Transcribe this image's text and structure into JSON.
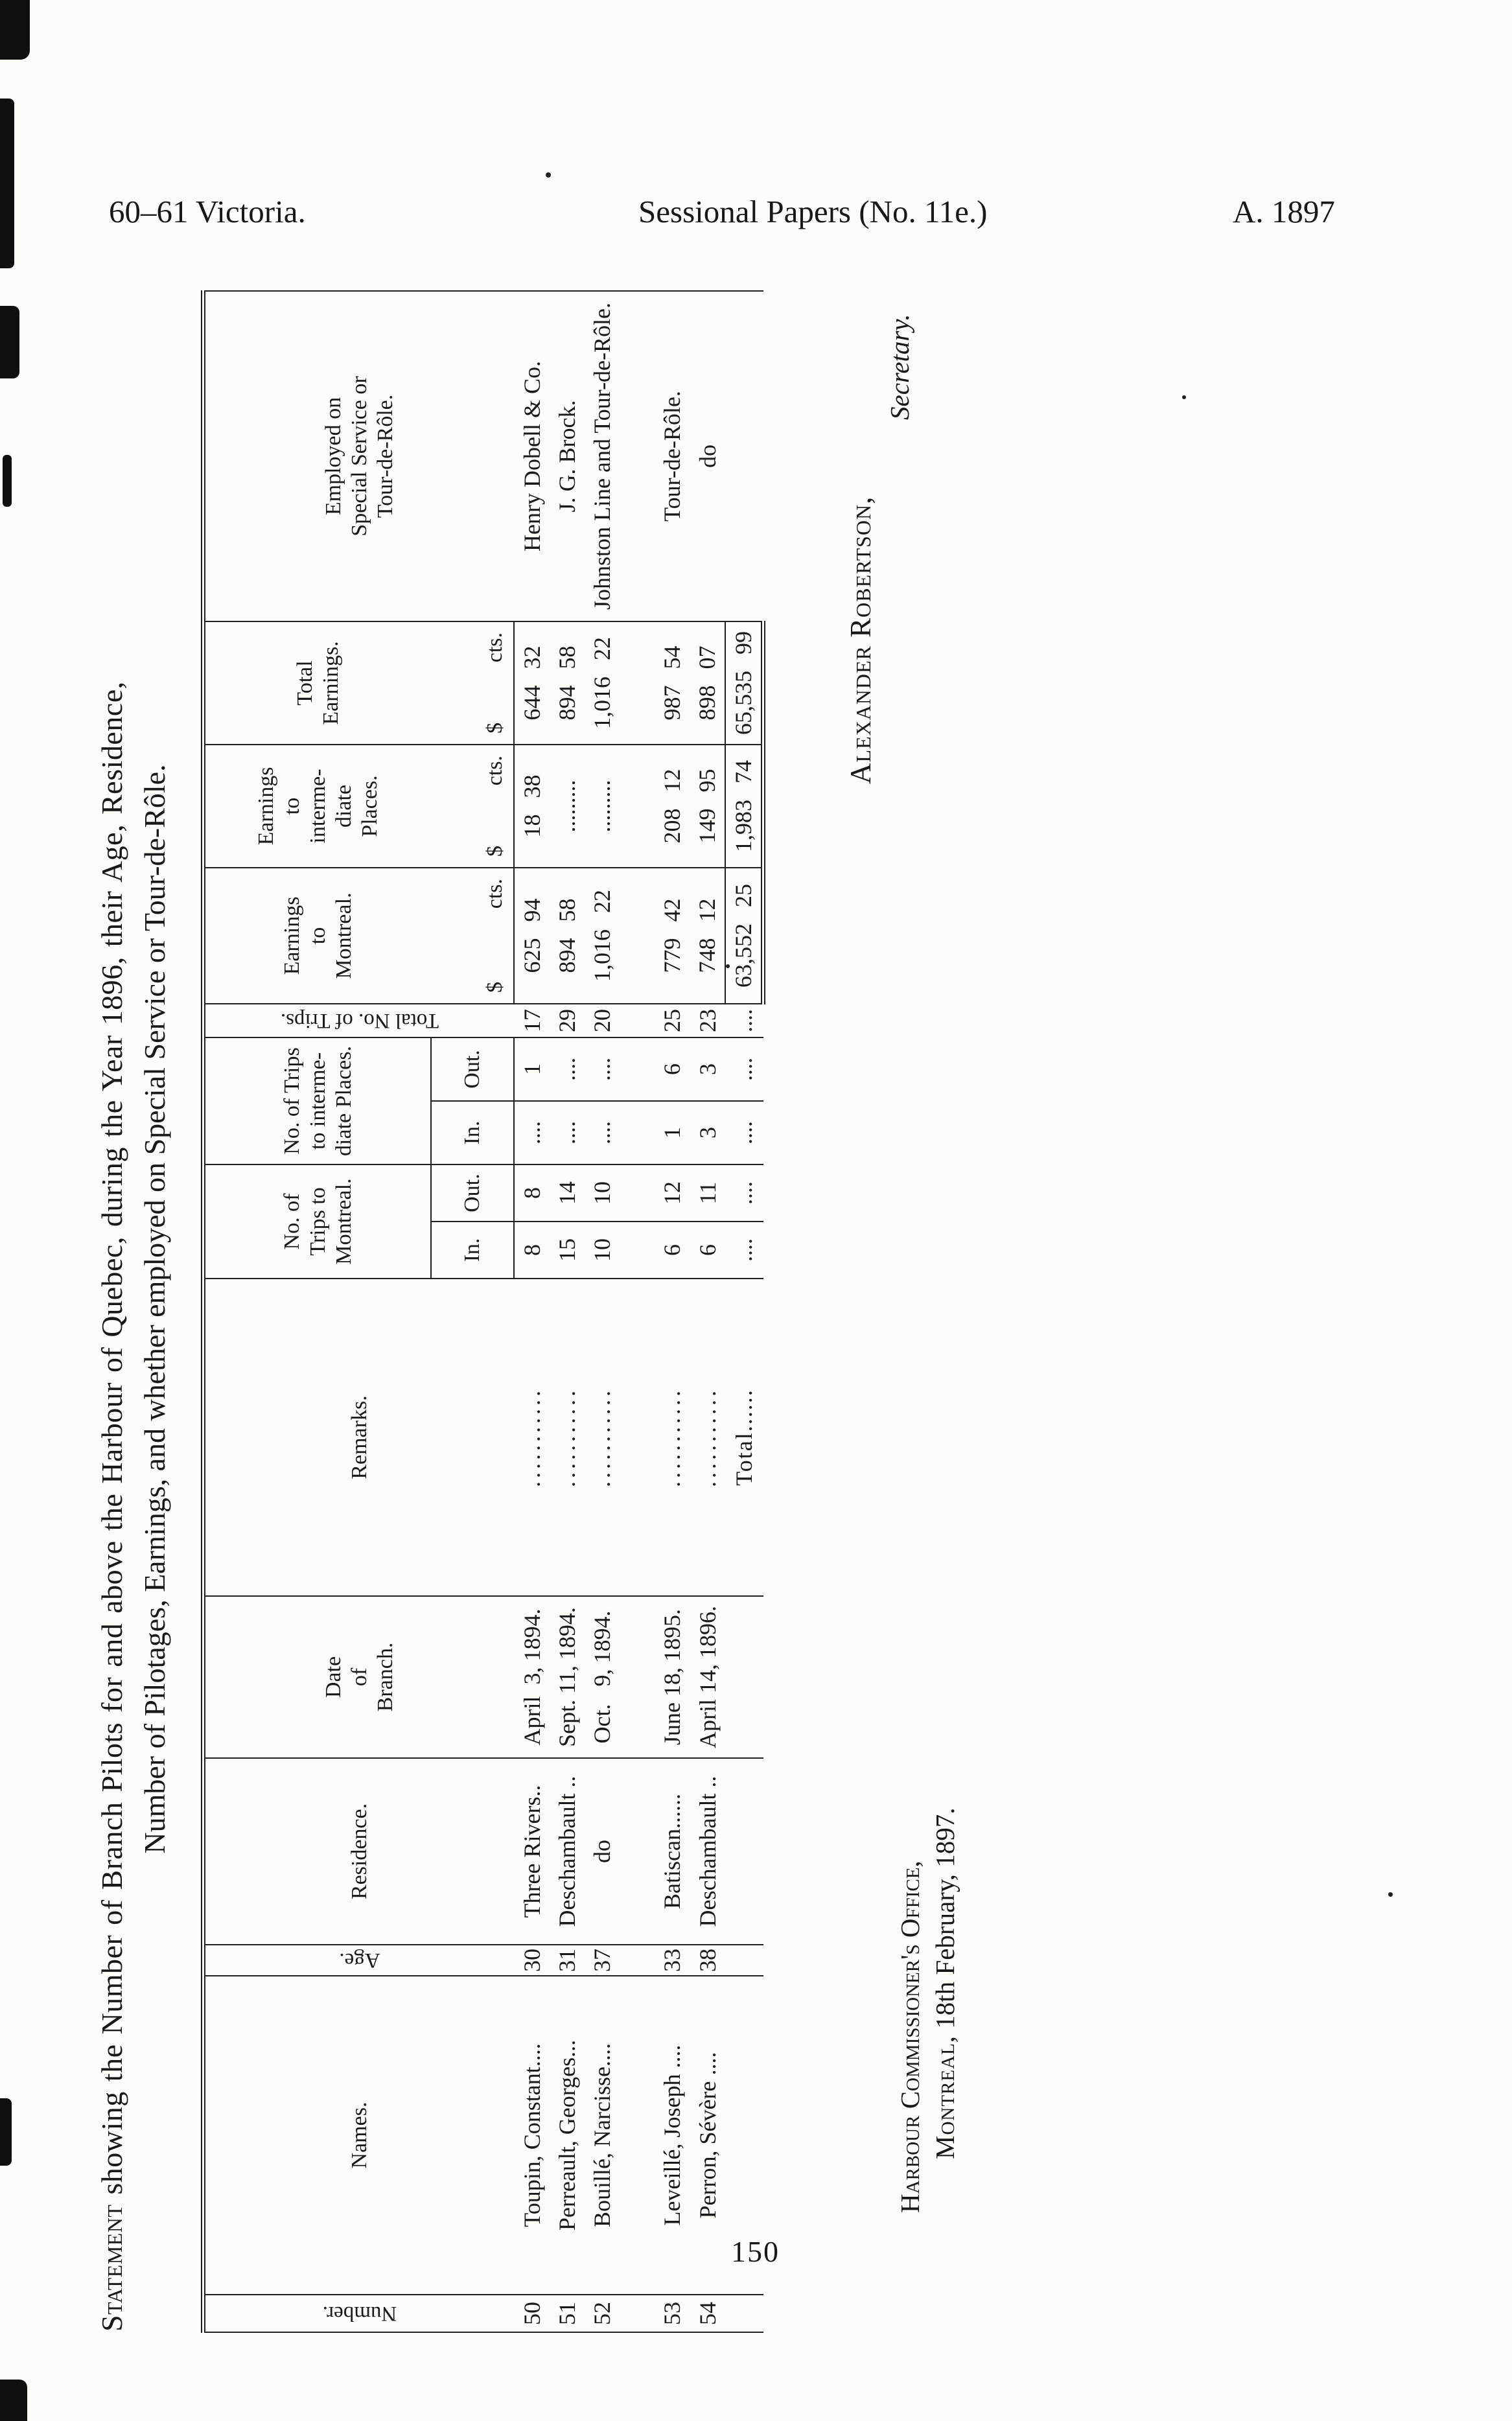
{
  "page_header": {
    "left": "60–61 Victoria.",
    "center": "Sessional Papers (No. 11e.)",
    "right": "A. 1897"
  },
  "title": {
    "line1_lead": "Statement",
    "line1_rest": " showing the Number of Branch Pilots for and above the Harbour of Quebec, during the Year 1896, their Age, Residence,",
    "line2": "Number of Pilotages, Earnings, and whether employed on Special Service or Tour-de-Rôle."
  },
  "table": {
    "headers": {
      "number": "Number.",
      "names": "Names.",
      "age": "Age.",
      "residence": "Residence.",
      "date_of_branch": "Date\nof\nBranch.",
      "remarks": "Remarks.",
      "trips_montreal": "No. of\nTrips to\nMontreal.",
      "trips_intermediate": "No. of Trips\nto interme-\ndiate Places.",
      "total_trips": "Total No. of Trips.",
      "earnings_montreal": "Earnings\nto\nMontreal.",
      "earnings_intermediate": "Earnings\nto\ninterme-\ndiate\nPlaces.",
      "total_earnings": "Total\nEarnings.",
      "employed": "Employed on\nSpecial Service or\nTour-de-Rôle."
    },
    "subheaders": {
      "in": "In.",
      "out": "Out.",
      "dollar": "$",
      "cts": "cts."
    },
    "rows": [
      {
        "num": "50",
        "name": "Toupin, Constant....",
        "age": "30",
        "residence": "Three Rivers..",
        "date": "April  3, 1894.",
        "remarks": "...........",
        "mtl_in": "8",
        "mtl_out": "8",
        "int_in": "....",
        "int_out": "1",
        "total_trips": "17",
        "earn_mtl": "625 94",
        "earn_int": "18 38",
        "total_earn": "644 32",
        "employed": "Henry Dobell & Co."
      },
      {
        "num": "51",
        "name": "Perreault, Georges...",
        "age": "31",
        "residence": "Deschambault ..",
        "date": "Sept. 11, 1894.",
        "remarks": "...........",
        "mtl_in": "15",
        "mtl_out": "14",
        "int_in": "....",
        "int_out": "....",
        "total_trips": "29",
        "earn_mtl": "894 58",
        "earn_int": ".........",
        "total_earn": "894 58",
        "employed": "J. G. Brock."
      },
      {
        "num": "52",
        "name": "Bouillé, Narcisse....",
        "age": "37",
        "residence": "do",
        "date": "Oct.   9, 1894.",
        "remarks": "...........",
        "mtl_in": "10",
        "mtl_out": "10",
        "int_in": "....",
        "int_out": "....",
        "total_trips": "20",
        "earn_mtl": "1,016 22",
        "earn_int": ".........",
        "total_earn": "1,016 22",
        "employed": "Johnston Line and Tour-de-Rôle."
      },
      {
        "num": "53",
        "name": "Leveillé, Joseph ....",
        "age": "33",
        "residence": "Batiscan......",
        "date": "June 18, 1895.",
        "remarks": "...........",
        "mtl_in": "6",
        "mtl_out": "12",
        "int_in": "1",
        "int_out": "6",
        "total_trips": "25",
        "earn_mtl": "779 42",
        "earn_int": "208 12",
        "total_earn": "987 54",
        "employed": "Tour-de-Rôle."
      },
      {
        "num": "54",
        "name": "Perron, Sévère ....",
        "age": "38",
        "residence": "Deschambault ..",
        "date": "April 14, 1896.",
        "remarks": "...........",
        "mtl_in": "6",
        "mtl_out": "11",
        "int_in": "3",
        "int_out": "3",
        "total_trips": "23",
        "earn_mtl": "748 12",
        "earn_int": "149 95",
        "total_earn": "898 07",
        "employed": "do"
      }
    ],
    "total": {
      "label": "Total......",
      "mtl_in": "....",
      "mtl_out": "....",
      "int_in": "....",
      "int_out": "....",
      "total_trips": "....",
      "earn_mtl": "63,552 25",
      "earn_int": "1,983 74",
      "total_earn": "65,535 99"
    }
  },
  "footer": {
    "office_line": "Harbour Commissioner's Office,",
    "montreal": "Montreal,",
    "date_rest": " 18th February, 1897.",
    "signature": "Alexander Robertson,",
    "signature_title": "Secretary.",
    "page_number": "150"
  }
}
